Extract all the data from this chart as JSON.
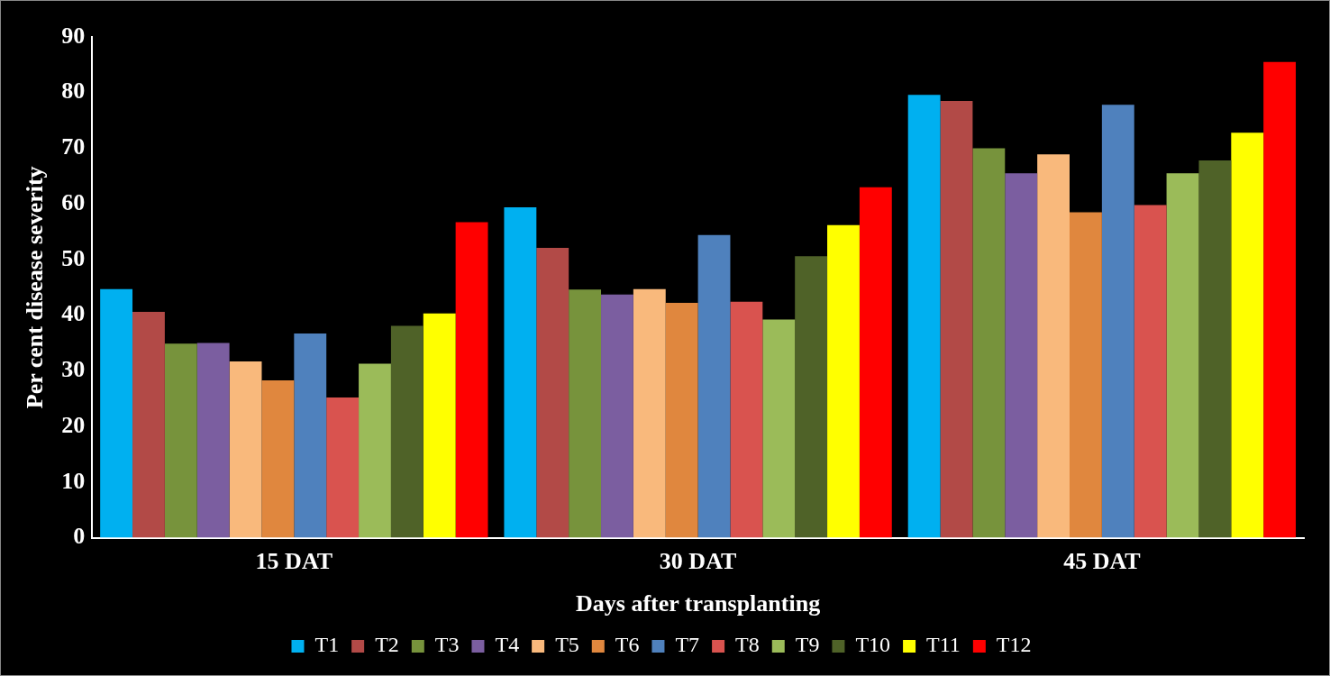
{
  "chart_data": {
    "type": "bar",
    "xlabel": "Days after transplanting",
    "ylabel": "Per cent disease severity",
    "categories": [
      "15 DAT",
      "30 DAT",
      "45 DAT"
    ],
    "series": [
      {
        "name": "T1",
        "color": "#00b0f0",
        "values": [
          44.7,
          59.4,
          79.6
        ]
      },
      {
        "name": "T2",
        "color": "#b24a47",
        "values": [
          40.6,
          52.1,
          78.5
        ]
      },
      {
        "name": "T3",
        "color": "#77933c",
        "values": [
          34.9,
          44.6,
          70
        ]
      },
      {
        "name": "T4",
        "color": "#7b5ea0",
        "values": [
          35,
          43.7,
          65.5
        ]
      },
      {
        "name": "T5",
        "color": "#f9b97c",
        "values": [
          31.7,
          44.7,
          68.9
        ]
      },
      {
        "name": "T6",
        "color": "#e0873e",
        "values": [
          28.3,
          42.2,
          58.5
        ]
      },
      {
        "name": "T7",
        "color": "#4f81bd",
        "values": [
          36.7,
          54.4,
          77.8
        ]
      },
      {
        "name": "T8",
        "color": "#d9534f",
        "values": [
          25.2,
          42.4,
          59.8
        ]
      },
      {
        "name": "T9",
        "color": "#9bbb59",
        "values": [
          31.3,
          39.2,
          65.5
        ]
      },
      {
        "name": "T10",
        "color": "#4f6228",
        "values": [
          38.1,
          50.6,
          67.8
        ]
      },
      {
        "name": "T11",
        "color": "#ffff00",
        "values": [
          40.3,
          56.2,
          72.8
        ]
      },
      {
        "name": "T12",
        "color": "#ff0000",
        "values": [
          56.7,
          63,
          85.5
        ]
      }
    ],
    "ylim": [
      0,
      90
    ],
    "yticks": [
      0,
      10,
      20,
      30,
      40,
      50,
      60,
      70,
      80,
      90
    ],
    "grid": false,
    "legend": "bottom"
  }
}
